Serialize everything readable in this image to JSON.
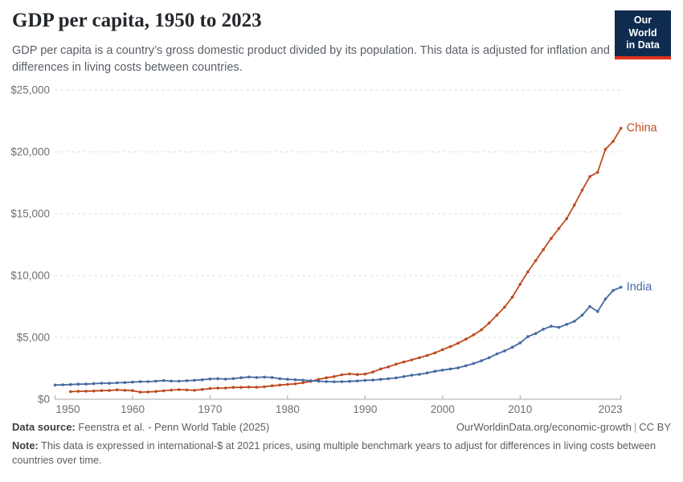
{
  "header": {
    "title": "GDP per capita, 1950 to 2023",
    "subtitle": "GDP per capita is a country’s gross domestic product divided by its population. This data is adjusted for inflation and differences in living costs between countries.",
    "logo_line1": "Our World",
    "logo_line2": "in Data",
    "logo_bg_color": "#0f2b4e",
    "logo_stripe_color": "#e0321c"
  },
  "footer": {
    "datasource_label": "Data source:",
    "datasource_value": "Feenstra et al. - Penn World Table (2025)",
    "url": "OurWorldinData.org/economic-growth",
    "separator": "|",
    "license": "CC BY",
    "note_label": "Note:",
    "note_text": "This data is expressed in international-$ at 2021 prices, using multiple benchmark years to adjust for differences in living costs between countries over time."
  },
  "chart_data": {
    "type": "line",
    "title": "GDP per capita, 1950 to 2023",
    "xlabel": "",
    "ylabel": "",
    "x_domain": [
      1950,
      2023
    ],
    "ylim": [
      0,
      25000
    ],
    "yticks": [
      0,
      5000,
      10000,
      15000,
      20000,
      25000
    ],
    "ytick_labels": [
      "$0",
      "$5,000",
      "$10,000",
      "$15,000",
      "$20,000",
      "$25,000"
    ],
    "xticks": [
      1950,
      1960,
      1970,
      1980,
      1990,
      2000,
      2010,
      2023
    ],
    "grid": "dashed-horizontal",
    "grid_color": "#dadada",
    "axis_label_color": "#6f6f6f",
    "axis_line_color": "#a7a7a7",
    "legend_position": "end-of-line-labels",
    "series": [
      {
        "name": "China",
        "color": "#be4b1e",
        "start_year": 1952,
        "end_year": 2023,
        "values": [
          620,
          640,
          650,
          670,
          700,
          710,
          760,
          730,
          700,
          580,
          590,
          630,
          690,
          740,
          780,
          750,
          730,
          790,
          870,
          900,
          910,
          960,
          960,
          990,
          970,
          1010,
          1090,
          1150,
          1200,
          1250,
          1340,
          1450,
          1610,
          1740,
          1830,
          1980,
          2050,
          2000,
          2040,
          2200,
          2450,
          2620,
          2840,
          3010,
          3180,
          3360,
          3540,
          3750,
          4010,
          4260,
          4530,
          4860,
          5210,
          5610,
          6160,
          6800,
          7450,
          8250,
          9300,
          10300,
          11200,
          12100,
          13000,
          13800,
          14600,
          15700,
          16900,
          18000,
          18350,
          20200,
          20850,
          21900
        ]
      },
      {
        "name": "India",
        "color": "#4569a0",
        "start_year": 1950,
        "end_year": 2023,
        "values": [
          1150,
          1170,
          1190,
          1220,
          1230,
          1260,
          1300,
          1290,
          1330,
          1350,
          1390,
          1420,
          1430,
          1460,
          1510,
          1470,
          1460,
          1500,
          1530,
          1580,
          1640,
          1660,
          1630,
          1670,
          1740,
          1800,
          1760,
          1790,
          1760,
          1660,
          1620,
          1580,
          1540,
          1500,
          1460,
          1430,
          1410,
          1420,
          1450,
          1480,
          1530,
          1550,
          1610,
          1660,
          1730,
          1830,
          1940,
          2010,
          2130,
          2260,
          2360,
          2450,
          2540,
          2710,
          2890,
          3110,
          3360,
          3660,
          3910,
          4210,
          4560,
          5060,
          5310,
          5660,
          5900,
          5810,
          6050,
          6300,
          6800,
          7500,
          7100,
          8100,
          8800,
          9050
        ]
      }
    ]
  }
}
